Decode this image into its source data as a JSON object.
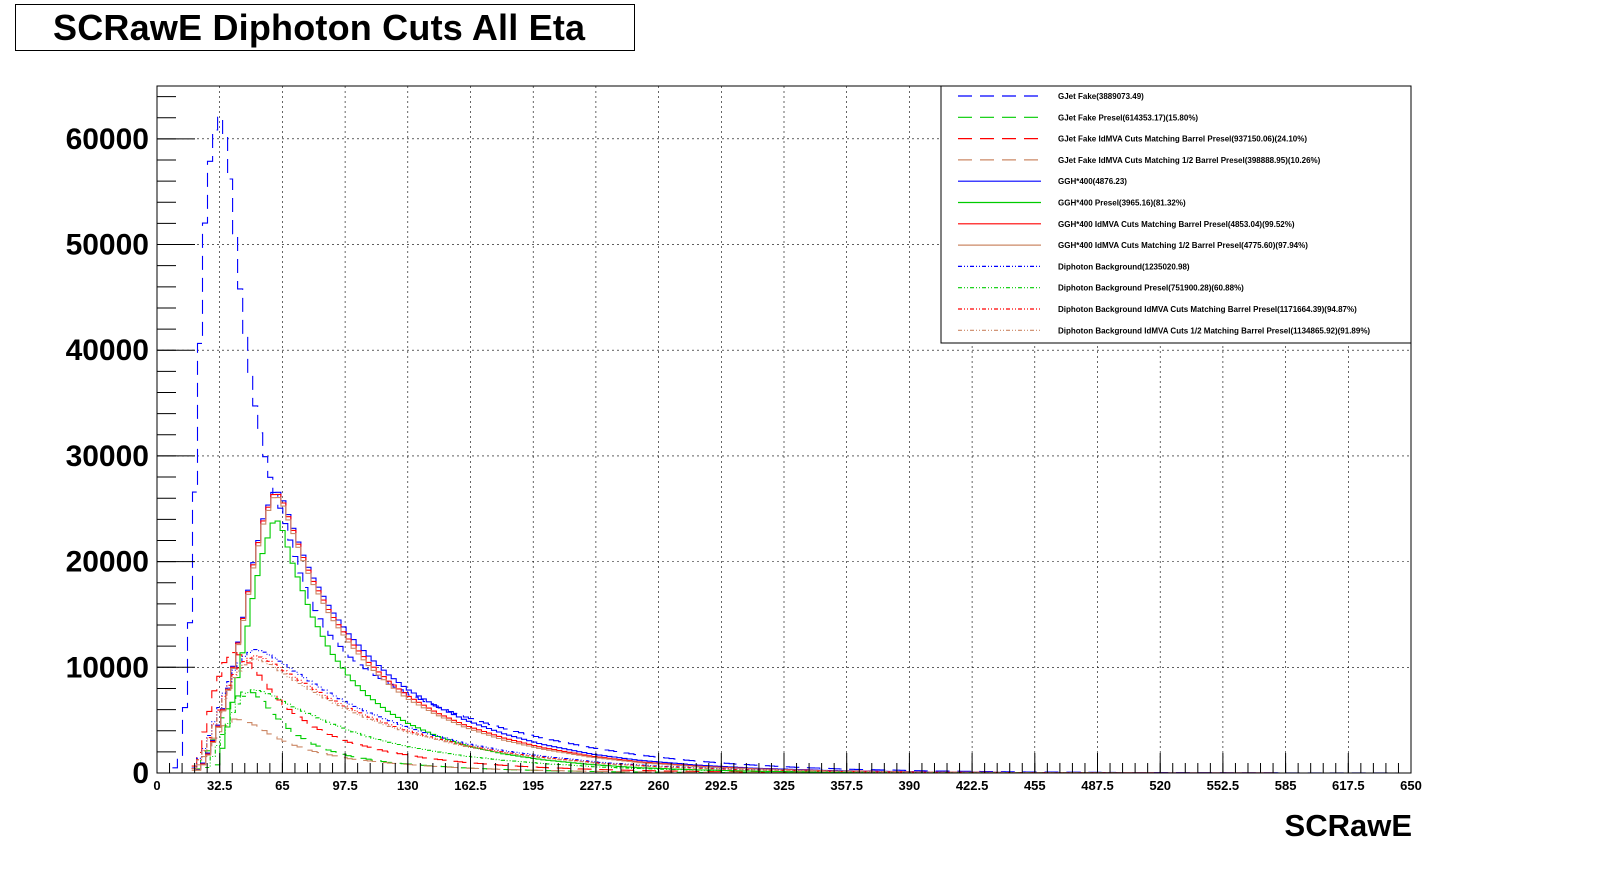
{
  "chart_data": {
    "type": "line",
    "title": "SCRawE Diphoton Cuts All Eta",
    "xlabel": "SCRawE",
    "ylabel": "",
    "xlim": [
      0,
      650
    ],
    "ylim": [
      0,
      65000
    ],
    "x_ticks": [
      "0",
      "32.5",
      "65",
      "97.5",
      "130",
      "162.5",
      "195",
      "227.5",
      "260",
      "292.5",
      "325",
      "357.5",
      "390",
      "422.5",
      "455",
      "487.5",
      "520",
      "552.5",
      "585",
      "617.5",
      "650"
    ],
    "y_ticks": [
      "0",
      "10000",
      "20000",
      "30000",
      "40000",
      "50000",
      "60000"
    ],
    "grid": true,
    "legend_position": "top-right",
    "series": [
      {
        "name": "GJet Fake(3889073.49)",
        "color": "#0000ff",
        "dash": "long",
        "x": [
          8,
          12,
          16,
          20,
          24,
          28,
          32,
          36,
          40,
          44,
          48,
          52,
          56,
          60,
          65,
          70,
          75,
          80,
          90,
          100,
          110,
          120,
          130,
          145,
          160,
          180,
          200,
          225,
          250,
          275,
          300,
          330,
          360,
          400,
          450,
          500,
          550,
          600,
          640
        ],
        "y": [
          0,
          1500,
          9000,
          28000,
          50000,
          59000,
          62500,
          60000,
          52000,
          44000,
          38000,
          33500,
          30000,
          27000,
          24500,
          21500,
          18500,
          16000,
          13000,
          11000,
          9600,
          8500,
          7500,
          6300,
          5300,
          4200,
          3300,
          2400,
          1700,
          1200,
          850,
          550,
          350,
          200,
          100,
          50,
          25,
          10,
          5
        ]
      },
      {
        "name": "GJet Fake Presel(614353.17)(15.80%)",
        "color": "#00cc00",
        "dash": "long",
        "x": [
          20,
          25,
          30,
          35,
          40,
          45,
          50,
          55,
          60,
          70,
          80,
          90,
          100,
          120,
          140,
          160,
          180,
          200,
          230,
          260,
          300,
          350,
          400
        ],
        "y": [
          0,
          1500,
          3500,
          5500,
          7000,
          7700,
          7600,
          6800,
          5600,
          3900,
          2800,
          2100,
          1600,
          1000,
          700,
          480,
          330,
          230,
          130,
          80,
          40,
          15,
          5
        ]
      },
      {
        "name": "GJet Fake IdMVA Cuts Matching Barrel Presel(937150.06)(24.10%)",
        "color": "#ff0000",
        "dash": "long",
        "x": [
          18,
          22,
          26,
          30,
          35,
          40,
          45,
          50,
          55,
          60,
          70,
          80,
          90,
          100,
          120,
          140,
          160,
          180,
          200,
          230,
          260,
          300,
          350,
          400
        ],
        "y": [
          0,
          2000,
          5000,
          8000,
          10500,
          11400,
          11000,
          10000,
          8800,
          7500,
          5800,
          4500,
          3600,
          2900,
          2000,
          1400,
          1000,
          720,
          520,
          320,
          200,
          100,
          40,
          10
        ]
      },
      {
        "name": "GJet Fake IdMVA Cuts Matching 1/2 Barrel Presel(398888.95)(10.26%)",
        "color": "#cc8866",
        "dash": "long",
        "x": [
          18,
          22,
          26,
          30,
          35,
          40,
          45,
          50,
          55,
          60,
          70,
          80,
          90,
          100,
          120,
          140,
          160,
          180,
          200,
          230,
          260,
          300,
          350,
          400
        ],
        "y": [
          0,
          800,
          2000,
          3400,
          4500,
          5100,
          5000,
          4600,
          4100,
          3500,
          2700,
          2100,
          1700,
          1350,
          950,
          670,
          470,
          340,
          245,
          150,
          95,
          45,
          18,
          5
        ]
      },
      {
        "name": "GGH*400(4876.23)",
        "color": "#0000ff",
        "dash": "solid",
        "x": [
          20,
          25,
          30,
          35,
          40,
          45,
          50,
          55,
          60,
          62,
          65,
          70,
          75,
          80,
          90,
          100,
          110,
          120,
          130,
          145,
          160,
          180,
          200,
          225,
          250,
          280,
          310,
          350,
          400,
          450,
          500,
          550,
          600
        ],
        "y": [
          0,
          1200,
          3500,
          6500,
          10500,
          15000,
          20000,
          24000,
          26500,
          26800,
          26000,
          23500,
          21000,
          18800,
          15500,
          13000,
          11000,
          9300,
          7900,
          6300,
          5000,
          3700,
          2700,
          1800,
          1200,
          750,
          450,
          230,
          100,
          45,
          20,
          8,
          3
        ]
      },
      {
        "name": "GGH*400 Presel(3965.16)(81.32%)",
        "color": "#00cc00",
        "dash": "solid",
        "x": [
          30,
          35,
          40,
          45,
          50,
          55,
          60,
          62,
          65,
          70,
          75,
          80,
          90,
          100,
          110,
          120,
          130,
          145,
          160,
          180,
          200,
          225,
          250,
          280,
          310,
          350,
          400,
          450,
          500
        ],
        "y": [
          0,
          3000,
          7500,
          12000,
          17000,
          21000,
          23700,
          24000,
          23000,
          20000,
          17500,
          15000,
          11500,
          9000,
          7200,
          5800,
          4700,
          3500,
          2600,
          1800,
          1250,
          800,
          500,
          300,
          170,
          80,
          30,
          12,
          4
        ]
      },
      {
        "name": "GGH*400 IdMVA Cuts Matching Barrel Presel(4853.04)(99.52%)",
        "color": "#ff0000",
        "dash": "solid",
        "x": [
          20,
          25,
          30,
          35,
          40,
          45,
          50,
          55,
          60,
          62,
          65,
          70,
          75,
          80,
          90,
          100,
          110,
          120,
          130,
          145,
          160,
          180,
          200,
          225,
          250,
          280,
          310,
          350,
          400,
          450,
          500,
          550,
          600
        ],
        "y": [
          0,
          1100,
          3400,
          6400,
          10400,
          14900,
          19800,
          23800,
          26300,
          26600,
          25800,
          23300,
          20800,
          18500,
          15100,
          12500,
          10400,
          8700,
          7300,
          5700,
          4500,
          3300,
          2400,
          1600,
          1050,
          650,
          400,
          200,
          90,
          40,
          18,
          7,
          3
        ]
      },
      {
        "name": "GGH*400 IdMVA Cuts Matching 1/2 Barrel Presel(4775.60)(97.94%)",
        "color": "#cc8866",
        "dash": "solid",
        "x": [
          20,
          25,
          30,
          35,
          40,
          45,
          50,
          55,
          60,
          62,
          65,
          70,
          75,
          80,
          90,
          100,
          110,
          120,
          130,
          145,
          160,
          180,
          200,
          225,
          250,
          280,
          310,
          350,
          400,
          450,
          500,
          550,
          600
        ],
        "y": [
          0,
          1000,
          3300,
          6300,
          10300,
          14700,
          19500,
          23500,
          26000,
          26300,
          25500,
          23000,
          20500,
          18200,
          14800,
          12200,
          10100,
          8400,
          7000,
          5500,
          4300,
          3100,
          2250,
          1500,
          980,
          610,
          370,
          185,
          85,
          38,
          17,
          7,
          3
        ]
      },
      {
        "name": "Diphoton Background(1235020.98)",
        "color": "#0000ff",
        "dash": "dashdot",
        "x": [
          18,
          25,
          30,
          35,
          40,
          45,
          50,
          55,
          60,
          65,
          70,
          80,
          90,
          100,
          110,
          120,
          130,
          145,
          160,
          180,
          200,
          230,
          260,
          300,
          350,
          400,
          450,
          500
        ],
        "y": [
          0,
          2500,
          5000,
          7600,
          9700,
          11000,
          11700,
          11500,
          11000,
          10400,
          9800,
          8600,
          7500,
          6500,
          5700,
          5000,
          4300,
          3500,
          2800,
          2100,
          1600,
          1000,
          650,
          350,
          160,
          70,
          30,
          12
        ]
      },
      {
        "name": "Diphoton Background Presel(751900.28)(60.88%)",
        "color": "#00cc00",
        "dash": "dashdot",
        "x": [
          25,
          30,
          35,
          40,
          45,
          50,
          55,
          60,
          65,
          70,
          80,
          90,
          100,
          110,
          120,
          130,
          145,
          160,
          180,
          200,
          230,
          260,
          300,
          350,
          400,
          450,
          500
        ],
        "y": [
          0,
          2000,
          4000,
          6000,
          7400,
          7900,
          7700,
          7300,
          6800,
          6300,
          5500,
          4700,
          4000,
          3400,
          2900,
          2500,
          2000,
          1600,
          1200,
          900,
          560,
          360,
          190,
          85,
          36,
          15,
          6
        ]
      },
      {
        "name": "Diphoton Background IdMVA Cuts Matching Barrel Presel(1171664.39)(94.87%)",
        "color": "#ff0000",
        "dash": "dashdot",
        "x": [
          18,
          25,
          30,
          35,
          40,
          45,
          50,
          55,
          60,
          65,
          70,
          80,
          90,
          100,
          110,
          120,
          130,
          145,
          160,
          180,
          200,
          230,
          260,
          300,
          350,
          400,
          450,
          500
        ],
        "y": [
          0,
          2300,
          4800,
          7300,
          9300,
          10500,
          11100,
          10900,
          10400,
          9800,
          9200,
          8100,
          7000,
          6100,
          5300,
          4600,
          4000,
          3250,
          2600,
          1950,
          1480,
          920,
          600,
          320,
          150,
          65,
          28,
          11
        ]
      },
      {
        "name": "Diphoton Background IdMVA Cuts 1/2 Matching Barrel Presel(1134865.92)(91.89%)",
        "color": "#cc8866",
        "dash": "dashdot",
        "x": [
          18,
          25,
          30,
          35,
          40,
          45,
          50,
          55,
          60,
          65,
          70,
          80,
          90,
          100,
          110,
          120,
          130,
          145,
          160,
          180,
          200,
          230,
          260,
          300,
          350,
          400,
          450,
          500
        ],
        "y": [
          0,
          2200,
          4600,
          7000,
          9000,
          10200,
          10800,
          10600,
          10100,
          9500,
          8900,
          7800,
          6800,
          5900,
          5100,
          4450,
          3850,
          3150,
          2500,
          1880,
          1430,
          890,
          580,
          310,
          145,
          63,
          27,
          10
        ]
      }
    ]
  }
}
